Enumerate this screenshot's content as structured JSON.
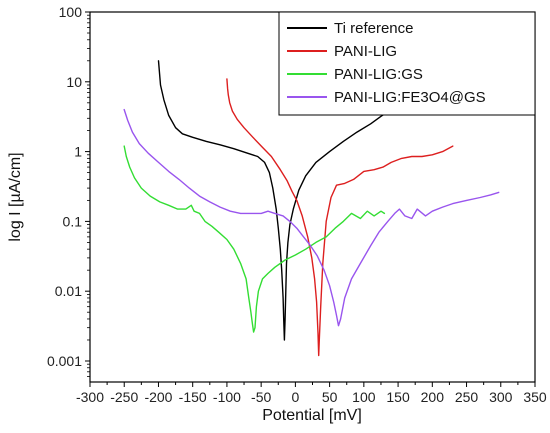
{
  "chart_data": {
    "type": "line",
    "xlabel": "Potential [mV]",
    "ylabel": "log I [µA/cm]",
    "xlim": [
      -300,
      350
    ],
    "ylim": [
      0.0005,
      100
    ],
    "yscale": "log",
    "x_ticks": [
      -300,
      -250,
      -200,
      -150,
      -100,
      -50,
      0,
      50,
      100,
      150,
      200,
      250,
      300,
      350
    ],
    "x_tick_labels": [
      "-300",
      "-250",
      "-200",
      "-150",
      "-100",
      "-50",
      "0",
      "50",
      "100",
      "150",
      "200",
      "250",
      "300",
      "350"
    ],
    "y_ticks": [
      0.001,
      0.01,
      0.1,
      1,
      10,
      100
    ],
    "y_tick_labels": [
      "0.001",
      "0.01",
      "0.1",
      "1",
      "10",
      "100"
    ],
    "grid": false,
    "legend_position": "top-right",
    "series": [
      {
        "name": "Ti reference",
        "color": "#000000",
        "points": [
          [
            -200,
            20
          ],
          [
            -197,
            9
          ],
          [
            -192,
            5.5
          ],
          [
            -185,
            3.3
          ],
          [
            -175,
            2.2
          ],
          [
            -165,
            1.8
          ],
          [
            -150,
            1.6
          ],
          [
            -130,
            1.4
          ],
          [
            -110,
            1.25
          ],
          [
            -90,
            1.1
          ],
          [
            -70,
            0.95
          ],
          [
            -55,
            0.85
          ],
          [
            -45,
            0.7
          ],
          [
            -38,
            0.5
          ],
          [
            -33,
            0.3
          ],
          [
            -28,
            0.15
          ],
          [
            -25,
            0.08
          ],
          [
            -22,
            0.04
          ],
          [
            -20,
            0.02
          ],
          [
            -18,
            0.008
          ],
          [
            -17,
            0.004
          ],
          [
            -16,
            0.002
          ],
          [
            -15,
            0.004
          ],
          [
            -14,
            0.01
          ],
          [
            -13,
            0.025
          ],
          [
            -11,
            0.05
          ],
          [
            -8,
            0.09
          ],
          [
            -3,
            0.15
          ],
          [
            5,
            0.28
          ],
          [
            15,
            0.45
          ],
          [
            30,
            0.7
          ],
          [
            50,
            1.0
          ],
          [
            70,
            1.4
          ],
          [
            90,
            1.9
          ],
          [
            110,
            2.5
          ],
          [
            125,
            3.2
          ],
          [
            135,
            3.7
          ]
        ]
      },
      {
        "name": "PANI-LIG",
        "color": "#dd1f1f",
        "points": [
          [
            -100,
            11
          ],
          [
            -99,
            8
          ],
          [
            -98,
            6.5
          ],
          [
            -96,
            5
          ],
          [
            -92,
            3.8
          ],
          [
            -85,
            2.9
          ],
          [
            -75,
            2.2
          ],
          [
            -62,
            1.6
          ],
          [
            -48,
            1.15
          ],
          [
            -35,
            0.85
          ],
          [
            -22,
            0.55
          ],
          [
            -12,
            0.38
          ],
          [
            -5,
            0.27
          ],
          [
            2,
            0.2
          ],
          [
            10,
            0.12
          ],
          [
            18,
            0.06
          ],
          [
            24,
            0.03
          ],
          [
            28,
            0.015
          ],
          [
            31,
            0.007
          ],
          [
            33,
            0.0025
          ],
          [
            34,
            0.0012
          ],
          [
            35,
            0.002
          ],
          [
            37,
            0.006
          ],
          [
            40,
            0.025
          ],
          [
            45,
            0.1
          ],
          [
            52,
            0.22
          ],
          [
            60,
            0.33
          ],
          [
            72,
            0.35
          ],
          [
            85,
            0.4
          ],
          [
            100,
            0.52
          ],
          [
            115,
            0.55
          ],
          [
            128,
            0.6
          ],
          [
            140,
            0.7
          ],
          [
            155,
            0.8
          ],
          [
            170,
            0.85
          ],
          [
            185,
            0.85
          ],
          [
            200,
            0.9
          ],
          [
            215,
            1.0
          ],
          [
            230,
            1.2
          ]
        ]
      },
      {
        "name": "PANI-LIG:GS",
        "color": "#33dd33",
        "points": [
          [
            -250,
            1.2
          ],
          [
            -247,
            0.85
          ],
          [
            -242,
            0.6
          ],
          [
            -235,
            0.42
          ],
          [
            -225,
            0.3
          ],
          [
            -212,
            0.23
          ],
          [
            -198,
            0.19
          ],
          [
            -185,
            0.17
          ],
          [
            -172,
            0.15
          ],
          [
            -160,
            0.15
          ],
          [
            -152,
            0.17
          ],
          [
            -148,
            0.14
          ],
          [
            -140,
            0.13
          ],
          [
            -132,
            0.1
          ],
          [
            -122,
            0.085
          ],
          [
            -112,
            0.07
          ],
          [
            -100,
            0.055
          ],
          [
            -90,
            0.04
          ],
          [
            -80,
            0.025
          ],
          [
            -72,
            0.015
          ],
          [
            -68,
            0.008
          ],
          [
            -65,
            0.005
          ],
          [
            -63,
            0.0035
          ],
          [
            -61,
            0.0026
          ],
          [
            -59,
            0.003
          ],
          [
            -57,
            0.006
          ],
          [
            -54,
            0.01
          ],
          [
            -48,
            0.015
          ],
          [
            -40,
            0.018
          ],
          [
            -30,
            0.022
          ],
          [
            -15,
            0.028
          ],
          [
            0,
            0.033
          ],
          [
            15,
            0.04
          ],
          [
            30,
            0.05
          ],
          [
            45,
            0.06
          ],
          [
            58,
            0.08
          ],
          [
            70,
            0.1
          ],
          [
            82,
            0.13
          ],
          [
            95,
            0.11
          ],
          [
            105,
            0.14
          ],
          [
            115,
            0.12
          ],
          [
            125,
            0.14
          ],
          [
            130,
            0.13
          ]
        ]
      },
      {
        "name": "PANI-LIG:FE3O4@GS",
        "color": "#9955ee",
        "points": [
          [
            -250,
            4
          ],
          [
            -245,
            2.8
          ],
          [
            -238,
            1.9
          ],
          [
            -228,
            1.3
          ],
          [
            -215,
            0.95
          ],
          [
            -200,
            0.7
          ],
          [
            -185,
            0.52
          ],
          [
            -170,
            0.4
          ],
          [
            -155,
            0.3
          ],
          [
            -140,
            0.23
          ],
          [
            -125,
            0.19
          ],
          [
            -110,
            0.16
          ],
          [
            -95,
            0.14
          ],
          [
            -80,
            0.13
          ],
          [
            -65,
            0.13
          ],
          [
            -50,
            0.13
          ],
          [
            -40,
            0.14
          ],
          [
            -30,
            0.13
          ],
          [
            -18,
            0.12
          ],
          [
            -8,
            0.1
          ],
          [
            2,
            0.08
          ],
          [
            12,
            0.06
          ],
          [
            22,
            0.045
          ],
          [
            32,
            0.032
          ],
          [
            42,
            0.02
          ],
          [
            50,
            0.012
          ],
          [
            56,
            0.007
          ],
          [
            60,
            0.0045
          ],
          [
            63,
            0.0032
          ],
          [
            66,
            0.004
          ],
          [
            72,
            0.008
          ],
          [
            82,
            0.015
          ],
          [
            95,
            0.025
          ],
          [
            110,
            0.045
          ],
          [
            122,
            0.07
          ],
          [
            135,
            0.1
          ],
          [
            145,
            0.13
          ],
          [
            152,
            0.15
          ],
          [
            160,
            0.12
          ],
          [
            170,
            0.11
          ],
          [
            178,
            0.15
          ],
          [
            190,
            0.12
          ],
          [
            200,
            0.14
          ],
          [
            215,
            0.16
          ],
          [
            230,
            0.18
          ],
          [
            250,
            0.2
          ],
          [
            270,
            0.22
          ],
          [
            285,
            0.24
          ],
          [
            297,
            0.26
          ]
        ]
      }
    ]
  }
}
